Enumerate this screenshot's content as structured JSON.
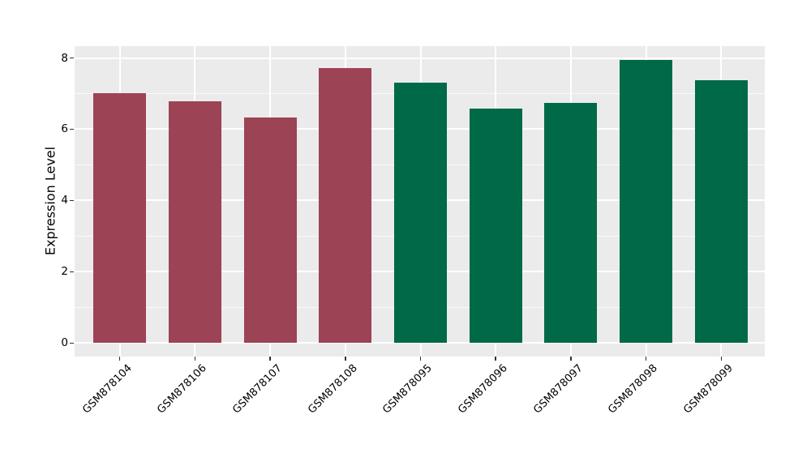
{
  "chart_data": {
    "type": "bar",
    "title": "",
    "xlabel": "",
    "ylabel": "Expression Level",
    "categories": [
      "GSM878104",
      "GSM878106",
      "GSM878107",
      "GSM878108",
      "GSM878095",
      "GSM878096",
      "GSM878097",
      "GSM878098",
      "GSM878099"
    ],
    "values": [
      7.02,
      6.78,
      6.32,
      7.72,
      7.3,
      6.59,
      6.73,
      7.94,
      7.38
    ],
    "bar_colors": [
      "#9C4355",
      "#9C4355",
      "#9C4355",
      "#9C4355",
      "#006948",
      "#006948",
      "#006948",
      "#006948",
      "#006948"
    ],
    "y_ticks": [
      0,
      2,
      4,
      6,
      8
    ],
    "y_tick_labels": [
      "0",
      "2",
      "4",
      "6",
      "8"
    ],
    "y_minor_ticks": [
      1,
      3,
      5,
      7
    ],
    "ylim": [
      -0.38,
      8.33
    ],
    "grid": "major-and-minor",
    "legend": "none",
    "panel_background": "#EBEBEB",
    "grid_color": "#FFFFFF",
    "tick_color": "#333333",
    "text_color": "#000000",
    "x_tick_rotation_deg": 45
  }
}
